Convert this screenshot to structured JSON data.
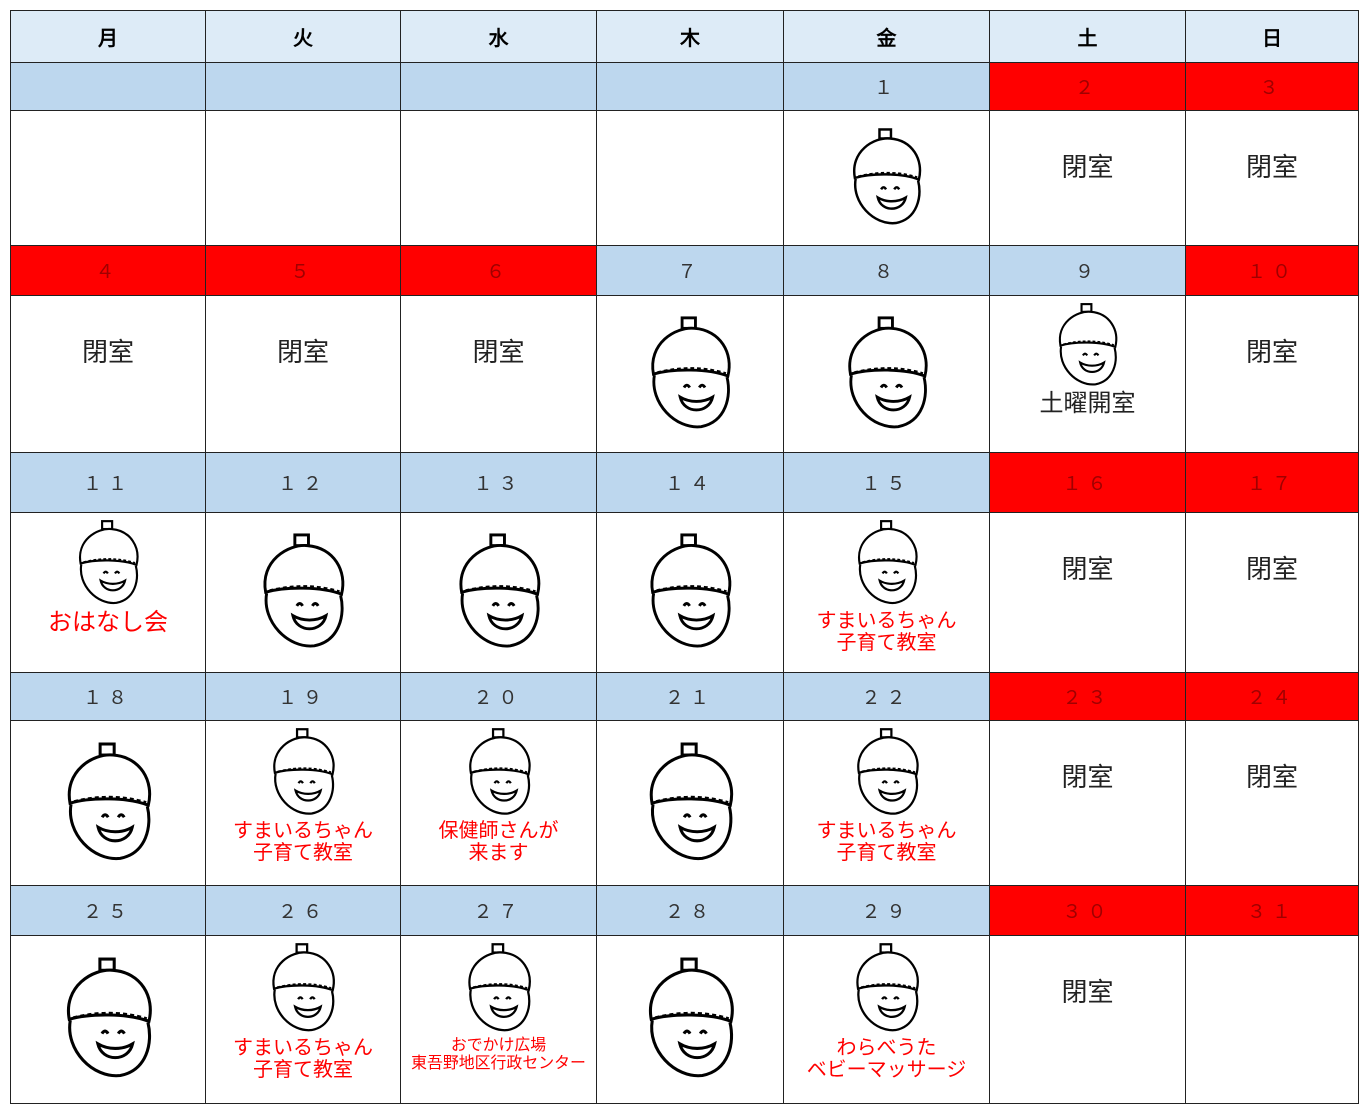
{
  "header": {
    "days": [
      "月",
      "火",
      "水",
      "木",
      "金",
      "土",
      "日"
    ]
  },
  "weeks": [
    {
      "days": [
        null,
        null,
        null,
        null,
        {
          "date": "１",
          "holiday": false,
          "acorn": true
        },
        {
          "date": "２",
          "holiday": true,
          "status": "閉室"
        },
        {
          "date": "３",
          "holiday": true,
          "status": "閉室"
        }
      ]
    },
    {
      "days": [
        {
          "date": "４",
          "holiday": true,
          "status": "閉室"
        },
        {
          "date": "５",
          "holiday": true,
          "status": "閉室"
        },
        {
          "date": "６",
          "holiday": true,
          "status": "閉室"
        },
        {
          "date": "７",
          "holiday": false,
          "acorn": true
        },
        {
          "date": "８",
          "holiday": false,
          "acorn": true
        },
        {
          "date": "９",
          "holiday": false,
          "acorn": true,
          "notes": [
            "土曜開室"
          ],
          "note_color": "#222222"
        },
        {
          "date": "１０",
          "holiday": true,
          "status": "閉室"
        }
      ]
    },
    {
      "days": [
        {
          "date": "１１",
          "holiday": false,
          "acorn": true,
          "notes": [
            "おはなし会"
          ],
          "note_color": "#ff0000"
        },
        {
          "date": "１２",
          "holiday": false,
          "acorn": true
        },
        {
          "date": "１３",
          "holiday": false,
          "acorn": true
        },
        {
          "date": "１４",
          "holiday": false,
          "acorn": true
        },
        {
          "date": "１５",
          "holiday": false,
          "acorn": true,
          "notes": [
            "すまいるちゃん",
            "子育て教室"
          ],
          "note_color": "#ff0000"
        },
        {
          "date": "１６",
          "holiday": true,
          "status": "閉室"
        },
        {
          "date": "１７",
          "holiday": true,
          "status": "閉室"
        }
      ]
    },
    {
      "days": [
        {
          "date": "１８",
          "holiday": false,
          "acorn": true
        },
        {
          "date": "１９",
          "holiday": false,
          "acorn": true,
          "notes": [
            "すまいるちゃん",
            "子育て教室"
          ],
          "note_color": "#ff0000"
        },
        {
          "date": "２０",
          "holiday": false,
          "acorn": true,
          "notes": [
            "保健師さんが",
            "来ます"
          ],
          "note_color": "#ff0000"
        },
        {
          "date": "２１",
          "holiday": false,
          "acorn": true
        },
        {
          "date": "２２",
          "holiday": false,
          "acorn": true,
          "notes": [
            "すまいるちゃん",
            "子育て教室"
          ],
          "note_color": "#ff0000"
        },
        {
          "date": "２３",
          "holiday": true,
          "status": "閉室"
        },
        {
          "date": "２４",
          "holiday": true,
          "status": "閉室"
        }
      ]
    },
    {
      "days": [
        {
          "date": "２５",
          "holiday": false,
          "acorn": true
        },
        {
          "date": "２６",
          "holiday": false,
          "acorn": true,
          "notes": [
            "すまいるちゃん",
            "子育て教室"
          ],
          "note_color": "#ff0000"
        },
        {
          "date": "２７",
          "holiday": false,
          "acorn": true,
          "notes": [
            "おでかけ広場",
            "東吾野地区行政センター"
          ],
          "note_color": "#ff0000"
        },
        {
          "date": "２８",
          "holiday": false,
          "acorn": true
        },
        {
          "date": "２９",
          "holiday": false,
          "acorn": true,
          "notes": [
            "わらべうた",
            "ベビーマッサージ"
          ],
          "note_color": "#ff0000"
        },
        {
          "date": "３０",
          "holiday": true,
          "status": "閉室"
        },
        {
          "date": "３１",
          "holiday": true
        }
      ]
    }
  ]
}
